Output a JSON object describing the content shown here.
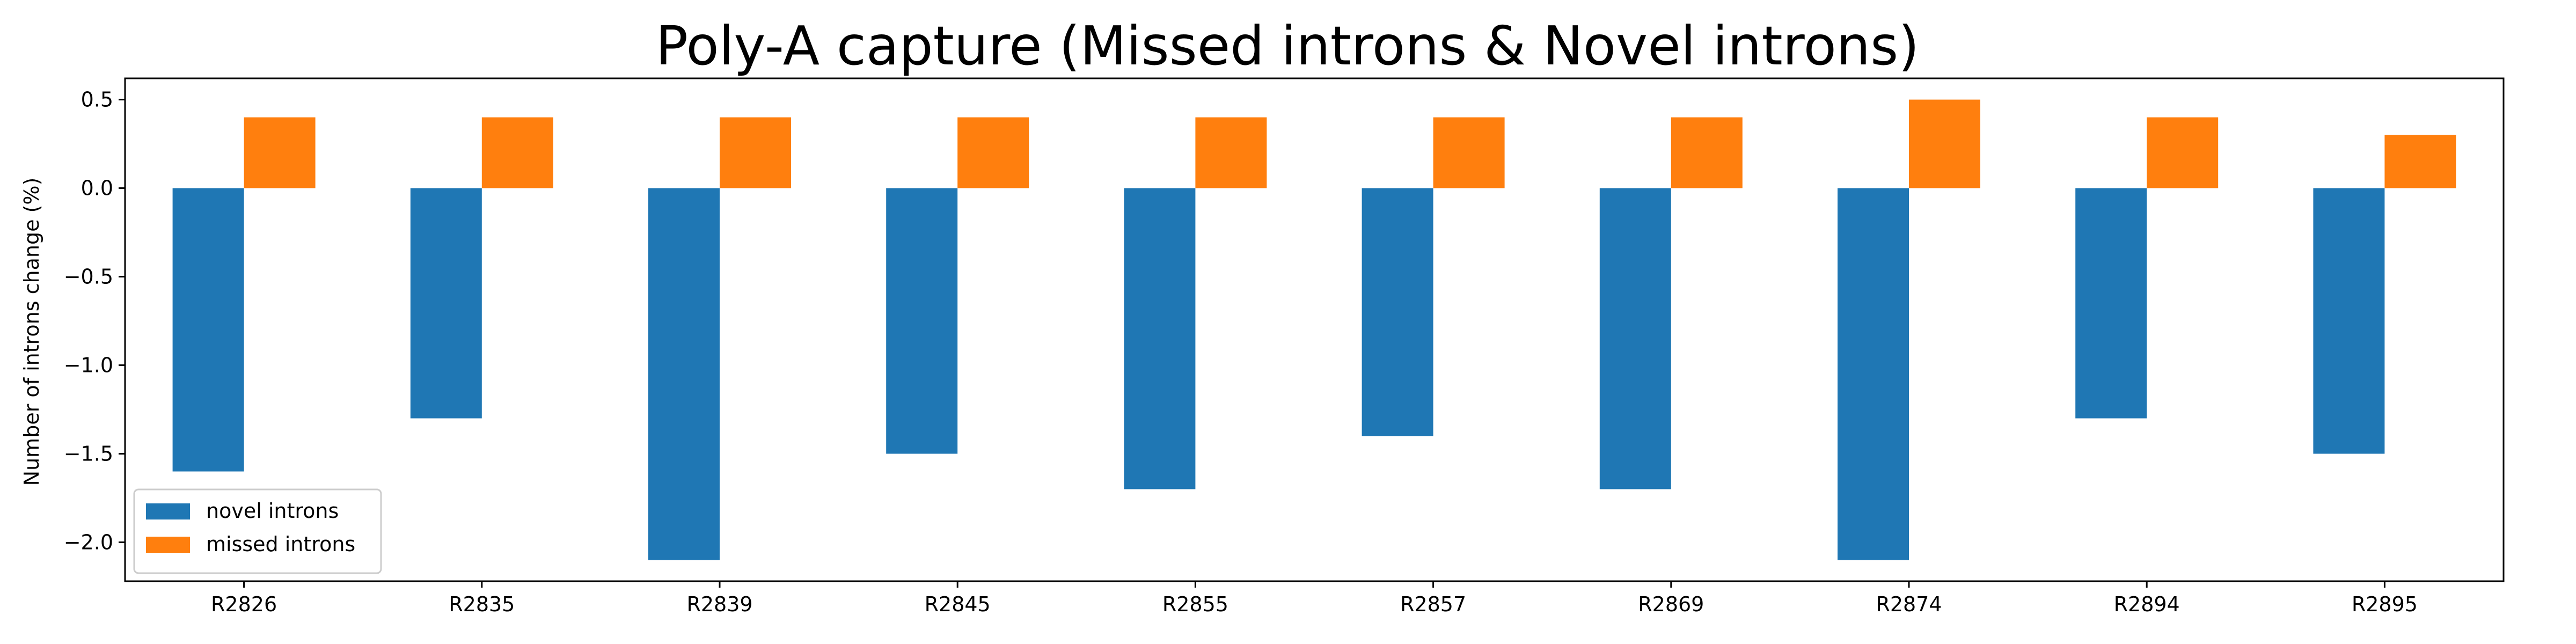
{
  "chart_data": {
    "type": "bar",
    "title": "Poly-A capture (Missed introns & Novel introns)",
    "xlabel": "",
    "ylabel": "Number of introns change (%)",
    "categories": [
      "R2826",
      "R2835",
      "R2839",
      "R2845",
      "R2855",
      "R2857",
      "R2869",
      "R2874",
      "R2894",
      "R2895"
    ],
    "series": [
      {
        "name": "novel introns",
        "color": "#1f77b4",
        "values": [
          -1.6,
          -1.3,
          -2.1,
          -1.5,
          -1.7,
          -1.4,
          -1.7,
          -2.1,
          -1.3,
          -1.5
        ]
      },
      {
        "name": "missed introns",
        "color": "#ff7f0e",
        "values": [
          0.4,
          0.4,
          0.4,
          0.4,
          0.4,
          0.4,
          0.4,
          0.5,
          0.4,
          0.3
        ]
      }
    ],
    "ylim": [
      -2.22,
      0.62
    ],
    "yticks": [
      -2.0,
      -1.5,
      -1.0,
      -0.5,
      0.0,
      0.5
    ],
    "ytick_labels": [
      "−2.0",
      "−1.5",
      "−1.0",
      "−0.5",
      "0.0",
      "0.5"
    ],
    "grid": false,
    "legend_position": "lower-left"
  }
}
